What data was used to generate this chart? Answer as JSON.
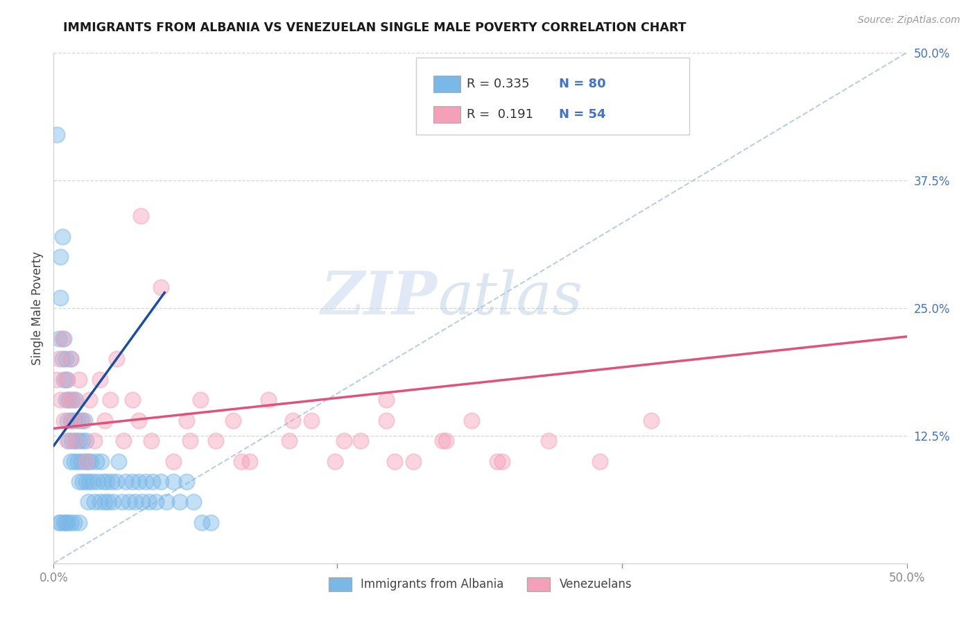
{
  "title": "IMMIGRANTS FROM ALBANIA VS VENEZUELAN SINGLE MALE POVERTY CORRELATION CHART",
  "source": "Source: ZipAtlas.com",
  "ylabel": "Single Male Poverty",
  "right_yticks": [
    "50.0%",
    "37.5%",
    "25.0%",
    "12.5%"
  ],
  "right_ytick_vals": [
    0.5,
    0.375,
    0.25,
    0.125
  ],
  "watermark_zip": "ZIP",
  "watermark_atlas": "atlas",
  "color_blue": "#7ab8e8",
  "color_pink": "#f4a0b8",
  "color_blue_line": "#1a4fa0",
  "color_pink_line": "#e0527a",
  "color_ref_line": "#b0c8e8",
  "xlim": [
    0.0,
    0.5
  ],
  "ylim": [
    0.0,
    0.5
  ],
  "background_color": "#ffffff",
  "grid_color": "#cccccc",
  "legend_items": [
    {
      "color": "#7ab8e8",
      "text1": "R = 0.335",
      "text2": "N = 80"
    },
    {
      "color": "#f4a0b8",
      "text1": "R =  0.191",
      "text2": "N = 54"
    }
  ],
  "bottom_legend": [
    "Immigrants from Albania",
    "Venezuelans"
  ],
  "xtick_minor": [
    0.166,
    0.333
  ],
  "albania_x": [
    0.002,
    0.003,
    0.004,
    0.004,
    0.005,
    0.005,
    0.006,
    0.006,
    0.007,
    0.007,
    0.008,
    0.008,
    0.009,
    0.009,
    0.01,
    0.01,
    0.01,
    0.011,
    0.011,
    0.012,
    0.012,
    0.013,
    0.013,
    0.014,
    0.014,
    0.015,
    0.015,
    0.016,
    0.016,
    0.017,
    0.017,
    0.018,
    0.018,
    0.019,
    0.019,
    0.02,
    0.02,
    0.021,
    0.022,
    0.023,
    0.024,
    0.025,
    0.026,
    0.027,
    0.028,
    0.029,
    0.03,
    0.031,
    0.032,
    0.034,
    0.035,
    0.037,
    0.038,
    0.04,
    0.042,
    0.044,
    0.046,
    0.048,
    0.05,
    0.052,
    0.054,
    0.056,
    0.058,
    0.06,
    0.063,
    0.066,
    0.07,
    0.074,
    0.078,
    0.082,
    0.087,
    0.092,
    0.01,
    0.012,
    0.015,
    0.003,
    0.004,
    0.006,
    0.007,
    0.008
  ],
  "albania_y": [
    0.42,
    0.22,
    0.26,
    0.3,
    0.2,
    0.32,
    0.18,
    0.22,
    0.16,
    0.2,
    0.14,
    0.18,
    0.16,
    0.12,
    0.2,
    0.14,
    0.1,
    0.16,
    0.12,
    0.14,
    0.1,
    0.12,
    0.16,
    0.1,
    0.14,
    0.12,
    0.08,
    0.14,
    0.1,
    0.12,
    0.08,
    0.1,
    0.14,
    0.08,
    0.12,
    0.1,
    0.06,
    0.08,
    0.1,
    0.08,
    0.06,
    0.1,
    0.08,
    0.06,
    0.1,
    0.08,
    0.06,
    0.08,
    0.06,
    0.08,
    0.06,
    0.08,
    0.1,
    0.06,
    0.08,
    0.06,
    0.08,
    0.06,
    0.08,
    0.06,
    0.08,
    0.06,
    0.08,
    0.06,
    0.08,
    0.06,
    0.08,
    0.06,
    0.08,
    0.06,
    0.04,
    0.04,
    0.04,
    0.04,
    0.04,
    0.04,
    0.04,
    0.04,
    0.04,
    0.04
  ],
  "venezuela_x": [
    0.002,
    0.003,
    0.004,
    0.005,
    0.006,
    0.007,
    0.008,
    0.009,
    0.01,
    0.011,
    0.012,
    0.013,
    0.015,
    0.017,
    0.019,
    0.021,
    0.024,
    0.027,
    0.03,
    0.033,
    0.037,
    0.041,
    0.046,
    0.051,
    0.057,
    0.063,
    0.07,
    0.078,
    0.086,
    0.095,
    0.105,
    0.115,
    0.126,
    0.138,
    0.151,
    0.165,
    0.18,
    0.195,
    0.211,
    0.228,
    0.245,
    0.263,
    0.05,
    0.08,
    0.11,
    0.14,
    0.17,
    0.2,
    0.23,
    0.26,
    0.29,
    0.32,
    0.35,
    0.195
  ],
  "venezuela_y": [
    0.18,
    0.2,
    0.16,
    0.22,
    0.14,
    0.18,
    0.12,
    0.16,
    0.2,
    0.14,
    0.16,
    0.12,
    0.18,
    0.14,
    0.1,
    0.16,
    0.12,
    0.18,
    0.14,
    0.16,
    0.2,
    0.12,
    0.16,
    0.34,
    0.12,
    0.27,
    0.1,
    0.14,
    0.16,
    0.12,
    0.14,
    0.1,
    0.16,
    0.12,
    0.14,
    0.1,
    0.12,
    0.14,
    0.1,
    0.12,
    0.14,
    0.1,
    0.14,
    0.12,
    0.1,
    0.14,
    0.12,
    0.1,
    0.12,
    0.1,
    0.12,
    0.1,
    0.14,
    0.16
  ],
  "albania_blue_line_x": [
    0.0,
    0.065
  ],
  "albania_blue_line_y": [
    0.115,
    0.265
  ],
  "venezuela_pink_line_x": [
    0.0,
    0.5
  ],
  "venezuela_pink_line_y": [
    0.132,
    0.222
  ]
}
